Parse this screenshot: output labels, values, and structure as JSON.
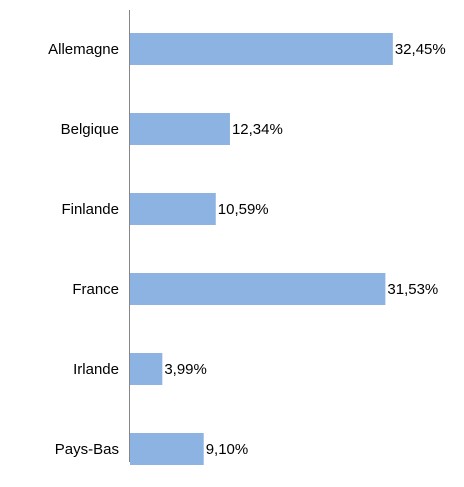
{
  "chart_data": {
    "type": "bar",
    "orientation": "horizontal",
    "categories": [
      "Allemagne",
      "Belgique",
      "Finlande",
      "France",
      "Irlande",
      "Pays-Bas"
    ],
    "values": [
      32.45,
      12.34,
      10.59,
      31.53,
      3.99,
      9.1
    ],
    "value_labels": [
      "32,45%",
      "12,34%",
      "10,59%",
      "31,53%",
      "3,99%",
      "9,10%"
    ],
    "color": "#8db3e2"
  }
}
